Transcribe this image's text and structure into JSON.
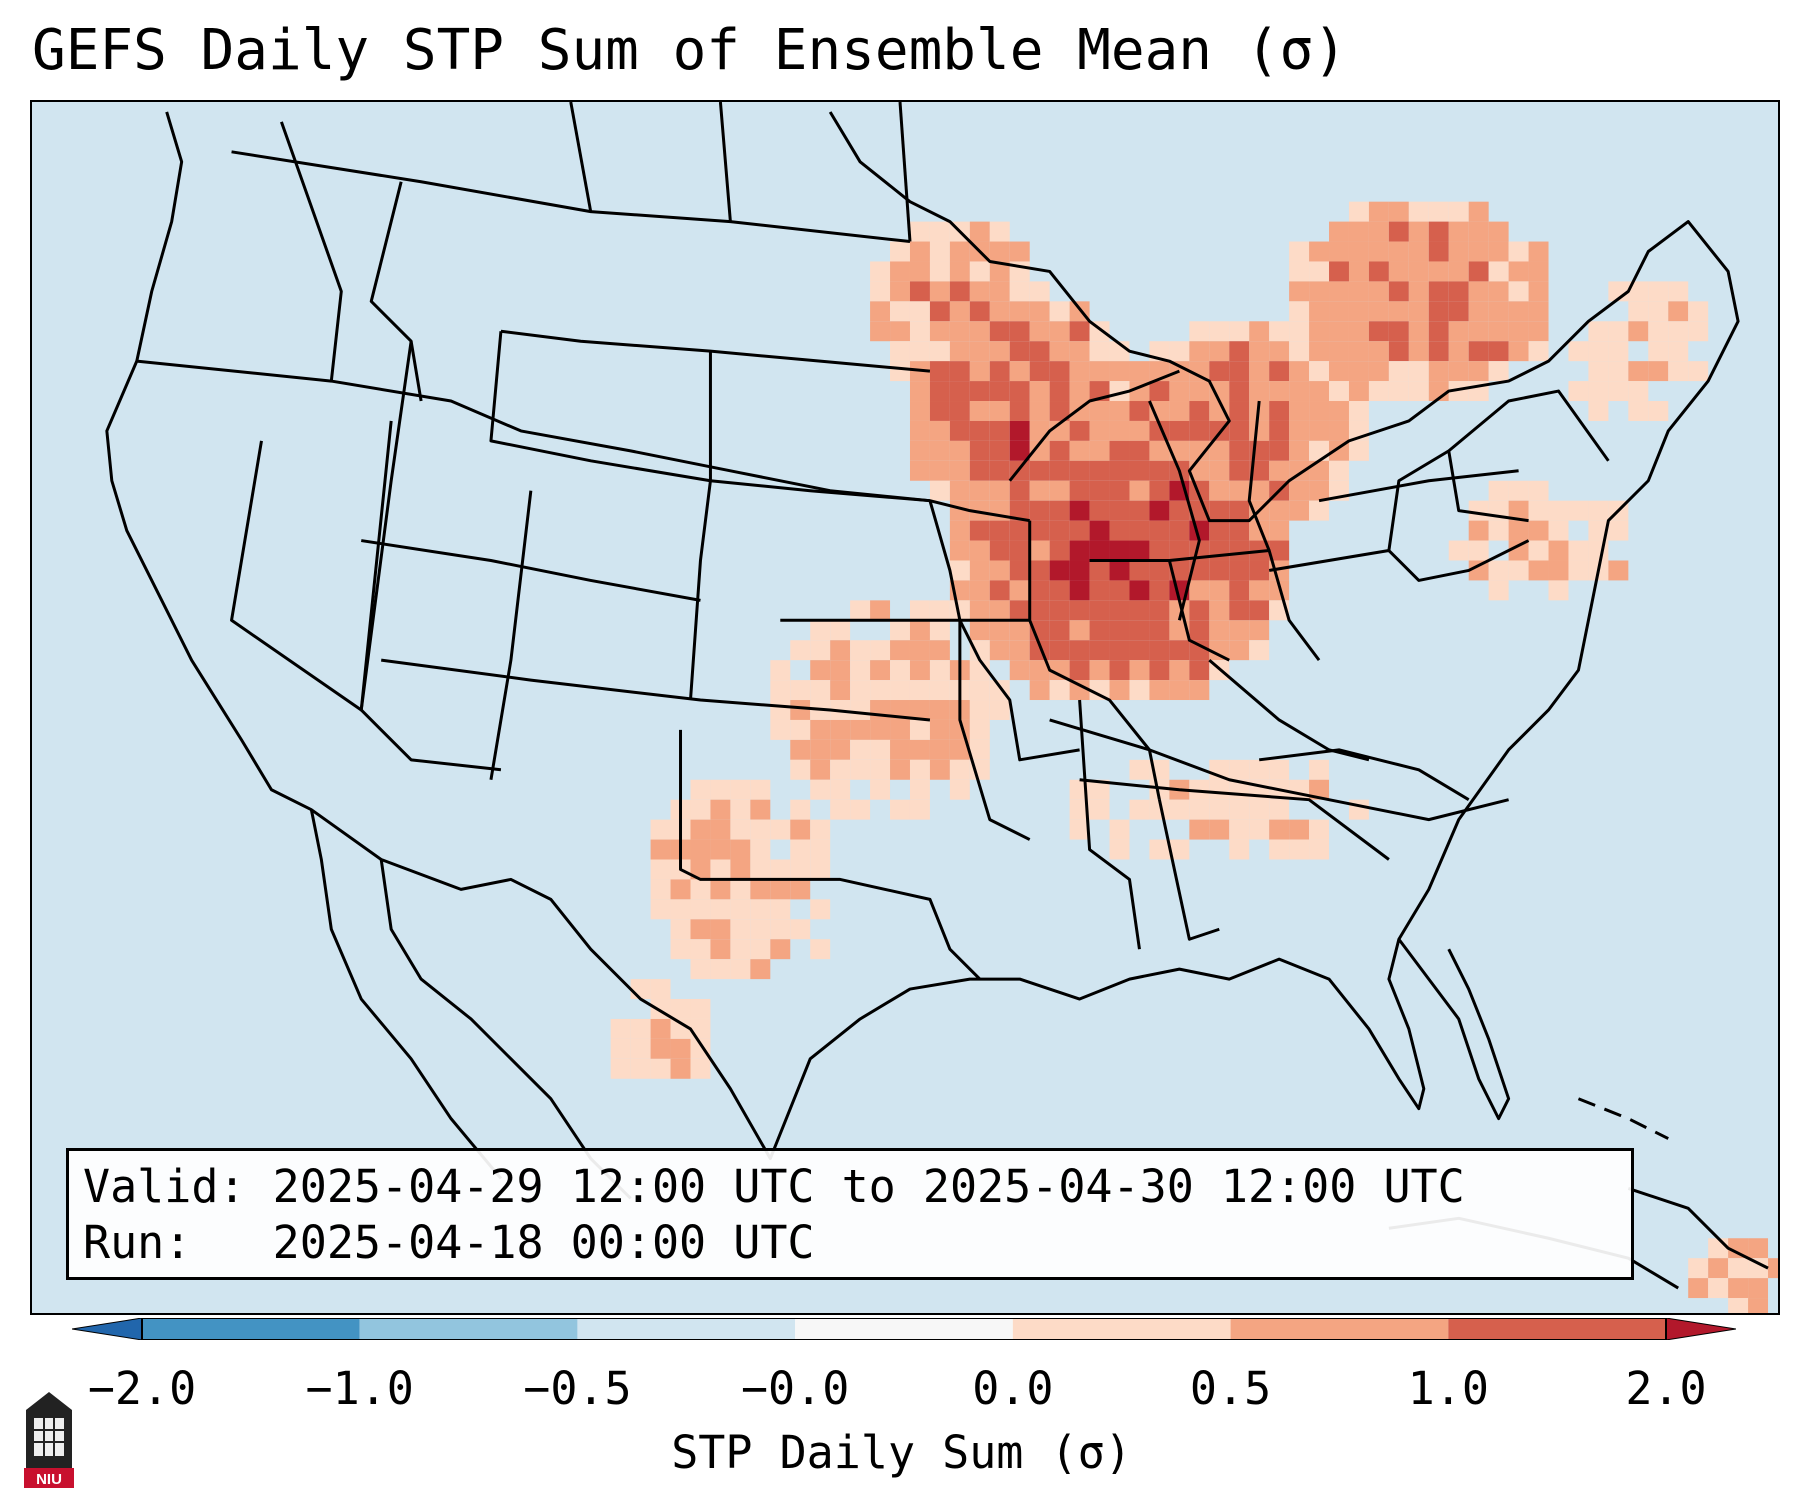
{
  "title": "GEFS Daily STP Sum of Ensemble Mean (σ)",
  "info": {
    "valid_label": "Valid:",
    "valid_value": "2025-04-29 12:00 UTC to 2025-04-30 12:00 UTC",
    "run_label": "Run:",
    "run_value": "2025-04-18 00:00 UTC"
  },
  "colorbar": {
    "label": "STP Daily Sum (σ)",
    "ticks": [
      "−2.0",
      "−1.0",
      "−0.5",
      "−0.0",
      "0.0",
      "0.5",
      "1.0",
      "2.0"
    ],
    "bin_colors": [
      "#4393c3",
      "#92c5de",
      "#d1e5f0",
      "#f7f7f7",
      "#fddbc7",
      "#f4a582",
      "#d6604d"
    ],
    "under_color": "#2166ac",
    "over_color": "#b2182b"
  },
  "colors": {
    "ocean": "#d1e5f0",
    "land_default": "#d1e5f0",
    "border": "#000000"
  },
  "logo": {
    "text": "NIU",
    "icon": "university-tower-icon"
  }
}
